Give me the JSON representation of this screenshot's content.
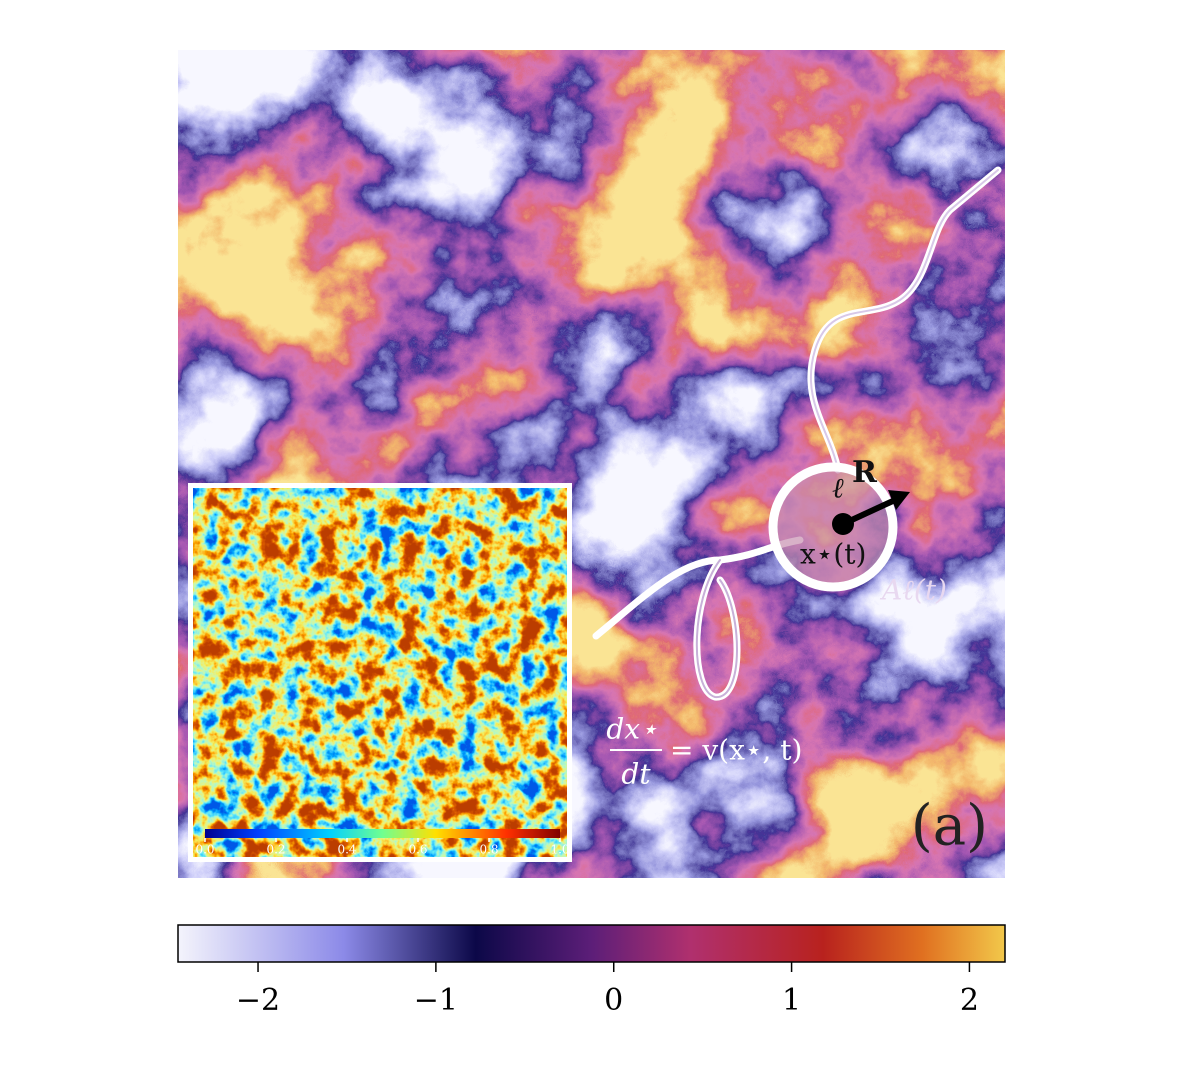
{
  "figure": {
    "panel_label": "(a)",
    "area_label": "Aℓ(t)",
    "scale_label": "ℓ",
    "vector_label": "R",
    "position_label": "x⋆(t)",
    "equation": {
      "numerator": "dx⋆",
      "denominator": "dt",
      "rhs": "= v(x⋆, t)"
    },
    "colorbar": {
      "lim": [
        -2.45,
        2.2
      ],
      "ticks": [
        {
          "value": -2,
          "label": "−2"
        },
        {
          "value": -1,
          "label": "−1"
        },
        0,
        1,
        2
      ]
    },
    "inset_colorbar": {
      "lim": [
        0,
        1
      ],
      "ticks": [
        {
          "value": 0,
          "label": "0.0"
        },
        {
          "value": 0.2,
          "label": "0.2"
        },
        {
          "value": 0.4,
          "label": "0.4"
        },
        {
          "value": 0.6,
          "label": "0.6"
        },
        {
          "value": 0.8,
          "label": "0.8"
        },
        {
          "value": 1,
          "label": "1.0"
        }
      ]
    }
  }
}
